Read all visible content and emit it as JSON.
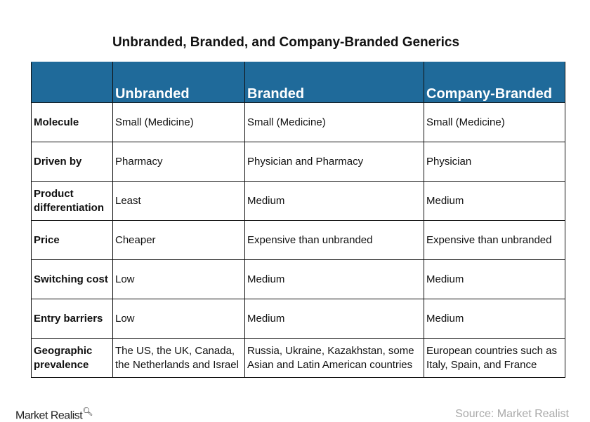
{
  "title": "Unbranded, Branded, and Company-Branded Generics",
  "columns": [
    "",
    "Unbranded",
    "Branded",
    "Company-Branded"
  ],
  "rows": [
    {
      "label": "Molecule",
      "cells": [
        "Small (Medicine)",
        "Small (Medicine)",
        "Small (Medicine)"
      ]
    },
    {
      "label": "Driven by",
      "cells": [
        "Pharmacy",
        "Physician and Pharmacy",
        "Physician"
      ]
    },
    {
      "label": "Product differentiation",
      "cells": [
        "Least",
        "Medium",
        "Medium"
      ]
    },
    {
      "label": "Price",
      "cells": [
        "Cheaper",
        "Expensive than unbranded",
        "Expensive than unbranded"
      ]
    },
    {
      "label": "Switching cost",
      "cells": [
        "Low",
        "Medium",
        "Medium"
      ]
    },
    {
      "label": "Entry barriers",
      "cells": [
        "Low",
        "Medium",
        "Medium"
      ]
    },
    {
      "label": "Geographic prevalence",
      "cells": [
        "The US, the UK, Canada, the Netherlands and Israel",
        "Russia, Ukraine, Kazakhstan, some Asian and Latin American countries",
        "European countries such as Italy, Spain, and France"
      ]
    }
  ],
  "logo": "Market Realist",
  "source": "Source:  Market  Realist",
  "colors": {
    "header": "#1f6a9a"
  }
}
